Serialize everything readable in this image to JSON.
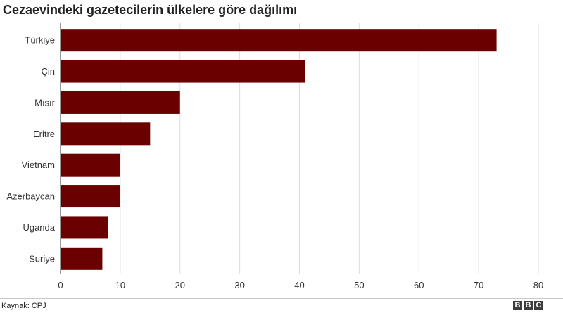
{
  "chart_data": {
    "type": "bar",
    "orientation": "horizontal",
    "title": "Cezaevindeki gazetecilerin ülkelere göre dağılımı",
    "categories": [
      "Türkiye",
      "Çin",
      "Mısır",
      "Eritre",
      "Vietnam",
      "Azerbaycan",
      "Uganda",
      "Suriye"
    ],
    "values": [
      73,
      41,
      20,
      15,
      10,
      10,
      8,
      7
    ],
    "xlim": [
      0,
      80
    ],
    "xticks": [
      0,
      10,
      20,
      30,
      40,
      50,
      60,
      70,
      80
    ],
    "xlabel": "",
    "ylabel": "",
    "grid": true,
    "bar_color": "#6b0000"
  },
  "source": "Kaynak: CPJ",
  "logo": [
    "B",
    "B",
    "C"
  ]
}
